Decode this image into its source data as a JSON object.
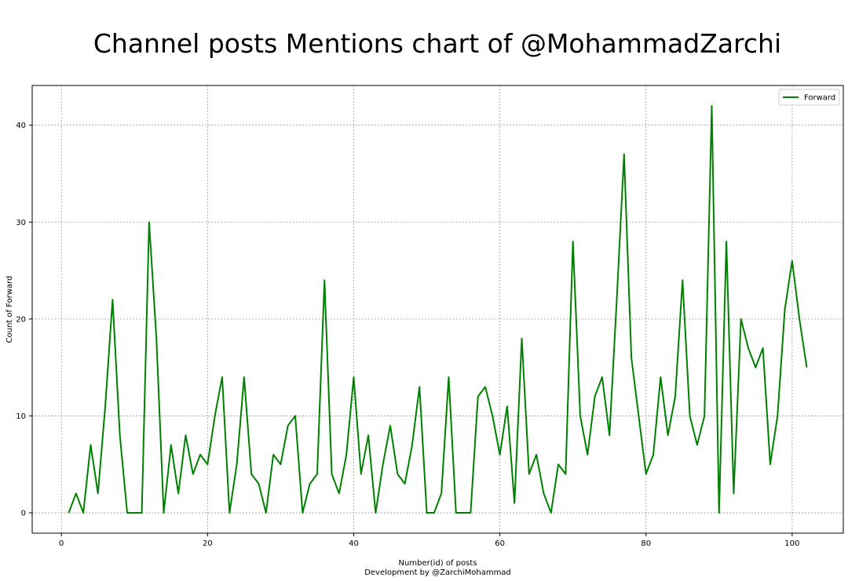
{
  "chart_data": {
    "type": "line",
    "title": "Channel posts Mentions chart of @MohammadZarchi",
    "xlabel": "Number(id) of posts",
    "xlabel_line2": "Development by @ZarchiMohammad",
    "ylabel": "Count of Forward",
    "xlim": [
      -4,
      107
    ],
    "ylim": [
      -2.1,
      44.1
    ],
    "xticks": [
      0,
      20,
      40,
      60,
      80,
      100
    ],
    "yticks": [
      0,
      10,
      20,
      30,
      40
    ],
    "grid": true,
    "legend_position": "top-right",
    "series": [
      {
        "name": "Forward",
        "color": "#008000",
        "x": [
          1,
          2,
          3,
          4,
          5,
          6,
          7,
          8,
          9,
          10,
          11,
          12,
          13,
          14,
          15,
          16,
          17,
          18,
          19,
          20,
          21,
          22,
          23,
          24,
          25,
          26,
          27,
          28,
          29,
          30,
          31,
          32,
          33,
          34,
          35,
          36,
          37,
          38,
          39,
          40,
          41,
          42,
          43,
          44,
          45,
          46,
          47,
          48,
          49,
          50,
          51,
          52,
          53,
          54,
          55,
          56,
          57,
          58,
          59,
          60,
          61,
          62,
          63,
          64,
          65,
          66,
          67,
          68,
          69,
          70,
          71,
          72,
          73,
          74,
          75,
          76,
          77,
          78,
          79,
          80,
          81,
          82,
          83,
          84,
          85,
          86,
          87,
          88,
          89,
          90,
          91,
          92,
          93,
          94,
          95,
          96,
          97,
          98,
          99,
          100,
          101,
          102
        ],
        "values": [
          0,
          2,
          0,
          7,
          2,
          11,
          22,
          8,
          0,
          0,
          0,
          30,
          18,
          0,
          7,
          2,
          8,
          4,
          6,
          5,
          10,
          14,
          0,
          5,
          14,
          4,
          3,
          0,
          6,
          5,
          9,
          10,
          0,
          3,
          4,
          24,
          4,
          2,
          6,
          14,
          4,
          8,
          0,
          5,
          9,
          4,
          3,
          7,
          13,
          0,
          0,
          2,
          14,
          0,
          0,
          0,
          12,
          13,
          10,
          6,
          11,
          1,
          18,
          4,
          6,
          2,
          0,
          5,
          4,
          28,
          10,
          6,
          12,
          14,
          8,
          22,
          37,
          16,
          10,
          4,
          6,
          14,
          8,
          12,
          24,
          10,
          7,
          10,
          42,
          0,
          28,
          2,
          20,
          17,
          15,
          17,
          5,
          10,
          21,
          26,
          20,
          15
        ]
      }
    ]
  }
}
